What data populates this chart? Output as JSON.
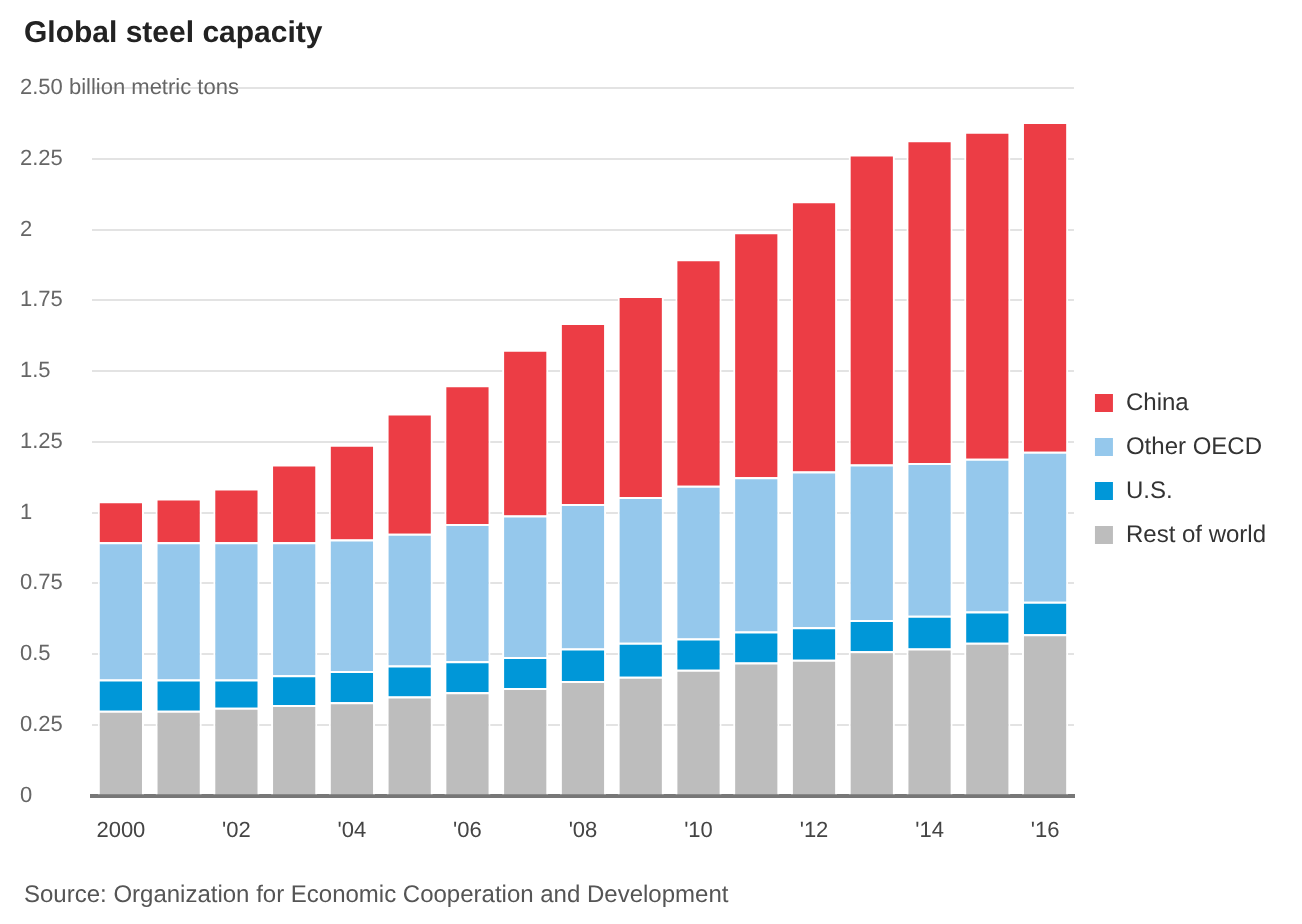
{
  "chart_data": {
    "type": "bar",
    "title": "Global steel capacity",
    "stacked": true,
    "legend": "right",
    "grid": "y",
    "categories": [
      "2000",
      null,
      "'02",
      null,
      "'04",
      null,
      "'06",
      null,
      "'08",
      null,
      "'10",
      null,
      "'12",
      null,
      "'14",
      null,
      "'16"
    ],
    "ylim": [
      0,
      2.5
    ],
    "yticks": [
      0,
      0.25,
      0.5,
      0.75,
      1.0,
      1.25,
      1.5,
      1.75,
      2.0,
      2.25,
      {
        "value": 2.5,
        "label": "2.50 billion metric tons"
      }
    ],
    "series": [
      {
        "name": "Rest of world",
        "color": "#bdbdbd",
        "values": [
          0.3,
          0.3,
          0.31,
          0.32,
          0.33,
          0.35,
          0.365,
          0.38,
          0.405,
          0.42,
          0.445,
          0.47,
          0.48,
          0.51,
          0.52,
          0.54,
          0.57
        ]
      },
      {
        "name": "U.S.",
        "color": "#0097d8",
        "values": [
          0.11,
          0.11,
          0.1,
          0.105,
          0.11,
          0.11,
          0.11,
          0.11,
          0.115,
          0.12,
          0.11,
          0.11,
          0.115,
          0.11,
          0.115,
          0.11,
          0.115
        ]
      },
      {
        "name": "Other OECD",
        "color": "#95c8ec",
        "values": [
          0.485,
          0.485,
          0.485,
          0.47,
          0.465,
          0.465,
          0.485,
          0.5,
          0.51,
          0.515,
          0.54,
          0.545,
          0.55,
          0.55,
          0.54,
          0.54,
          0.53
        ]
      },
      {
        "name": "China",
        "color": "#ec3d45",
        "values": [
          0.145,
          0.155,
          0.19,
          0.275,
          0.335,
          0.425,
          0.49,
          0.585,
          0.64,
          0.71,
          0.8,
          0.865,
          0.955,
          1.095,
          1.14,
          1.155,
          1.165
        ]
      }
    ],
    "annotations": [
      "Source: Organization for Economic Cooperation and Development"
    ]
  }
}
